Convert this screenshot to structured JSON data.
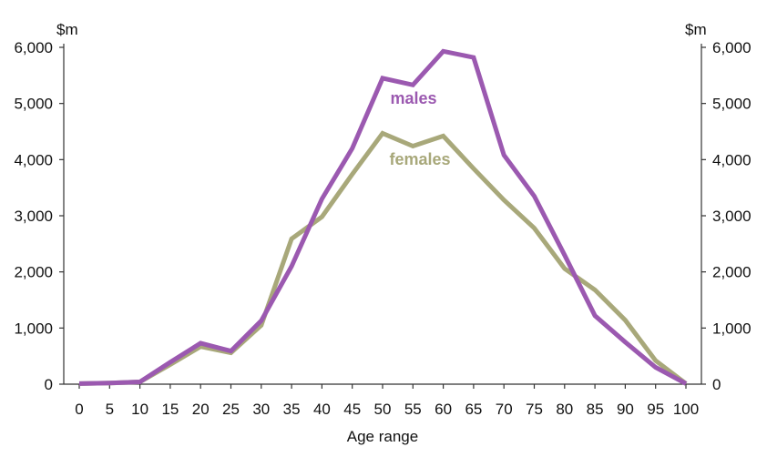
{
  "chart_data": {
    "type": "line",
    "title": "",
    "xlabel": "Age range",
    "ylabel_left": "$m",
    "ylabel_right": "$m",
    "x": [
      0,
      5,
      10,
      15,
      20,
      25,
      30,
      35,
      40,
      45,
      50,
      55,
      60,
      65,
      70,
      75,
      80,
      85,
      90,
      95,
      100
    ],
    "xticks": [
      "0",
      "5",
      "10",
      "15",
      "20",
      "25",
      "30",
      "35",
      "40",
      "45",
      "50",
      "55",
      "60",
      "65",
      "70",
      "75",
      "80",
      "85",
      "90",
      "95",
      "100"
    ],
    "yticks": [
      "0",
      "1,000",
      "2,000",
      "3,000",
      "4,000",
      "5,000",
      "6,000"
    ],
    "ylim": [
      0,
      6000
    ],
    "grid": false,
    "series": [
      {
        "name": "males",
        "color": "#9b59b0",
        "values": [
          10,
          20,
          40,
          390,
          730,
          590,
          1130,
          2100,
          3300,
          4200,
          5450,
          5330,
          5930,
          5820,
          4080,
          3350,
          2300,
          1220,
          750,
          300,
          10
        ]
      },
      {
        "name": "females",
        "color": "#a8a87a",
        "values": [
          10,
          20,
          40,
          350,
          670,
          560,
          1050,
          2590,
          2980,
          3740,
          4470,
          4240,
          4420,
          3840,
          3280,
          2780,
          2060,
          1680,
          1140,
          420,
          10
        ]
      }
    ]
  }
}
